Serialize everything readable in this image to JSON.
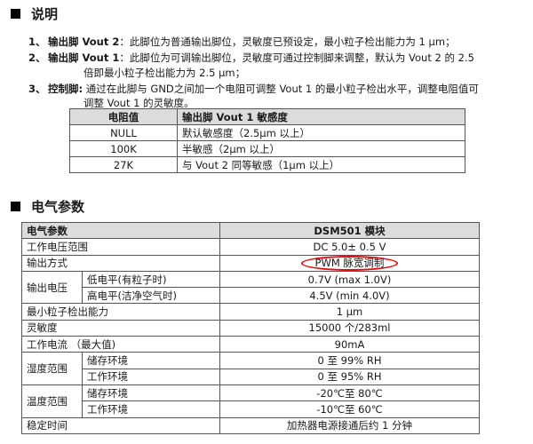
{
  "section1": {
    "title": "说明",
    "items": [
      {
        "num": "1、",
        "label": "输出脚 Vout 2",
        "text": "：此脚位为普通输出脚位，灵敏度已预设定，最小粒子检出能力为 1 μm；"
      },
      {
        "num": "2、",
        "label": "输出脚 Vout 1",
        "text": "：此脚位为可调输出脚位，灵敏度可通过控制脚来调整，默认为 Vout 2 的 2.5",
        "cont": "倍即最小粒子检出能力为 2.5 μm；"
      },
      {
        "num": "3、",
        "label": "控制脚:",
        "text": " 通过在此脚与 GND之间加一个电阻可调整 Vout 1 的最小粒子检出水平，调整电阻值可",
        "cont": "调整 Vout 1 的灵敏度。"
      }
    ],
    "table": {
      "headers": [
        "电阻值",
        "输出脚 Vout 1 敏感度"
      ],
      "rows": [
        [
          "NULL",
          "默认敏感度（2.5μm 以上）"
        ],
        [
          "100K",
          "半敏感（2μm 以上）"
        ],
        [
          "27K",
          "与 Vout 2 同等敏感（1μm 以上）"
        ]
      ]
    }
  },
  "section2": {
    "title": "电气参数",
    "headers": [
      "电气参数",
      "DSM501 模块"
    ],
    "rows": {
      "voltage_range": {
        "label": "工作电压范围",
        "value": "DC 5.0± 0.5 V"
      },
      "output_mode": {
        "label": "输出方式",
        "value": "PWM 脉宽调制"
      },
      "output_voltage": {
        "label": "输出电压",
        "low_label": "低电平(有粒子时)",
        "low_value": "0.7V  (max   1.0V)",
        "high_label": "高电平(洁净空气时)",
        "high_value": "4.5V  (min   4.0V)"
      },
      "min_particle": {
        "label": "最小粒子检出能力",
        "value": "1 μm"
      },
      "sensitivity": {
        "label": "灵敏度",
        "value": "15000 个/283ml"
      },
      "current": {
        "label": "工作电流 （最大值)",
        "value": "90mA"
      },
      "humidity": {
        "label": "湿度范围",
        "storage_label": "储存环境",
        "storage_value": "0 至 99% RH",
        "work_label": "工作环境",
        "work_value": "0 至 95% RH"
      },
      "temperature": {
        "label": "温度范围",
        "storage_label": "储存环境",
        "storage_value": "-20℃至 80℃",
        "work_label": "工作环境",
        "work_value": "-10℃至 60℃"
      },
      "stabilize": {
        "label": "稳定时间",
        "value": "加热器电源接通后约 1 分钟"
      }
    },
    "highlight_color": "#e01010"
  }
}
